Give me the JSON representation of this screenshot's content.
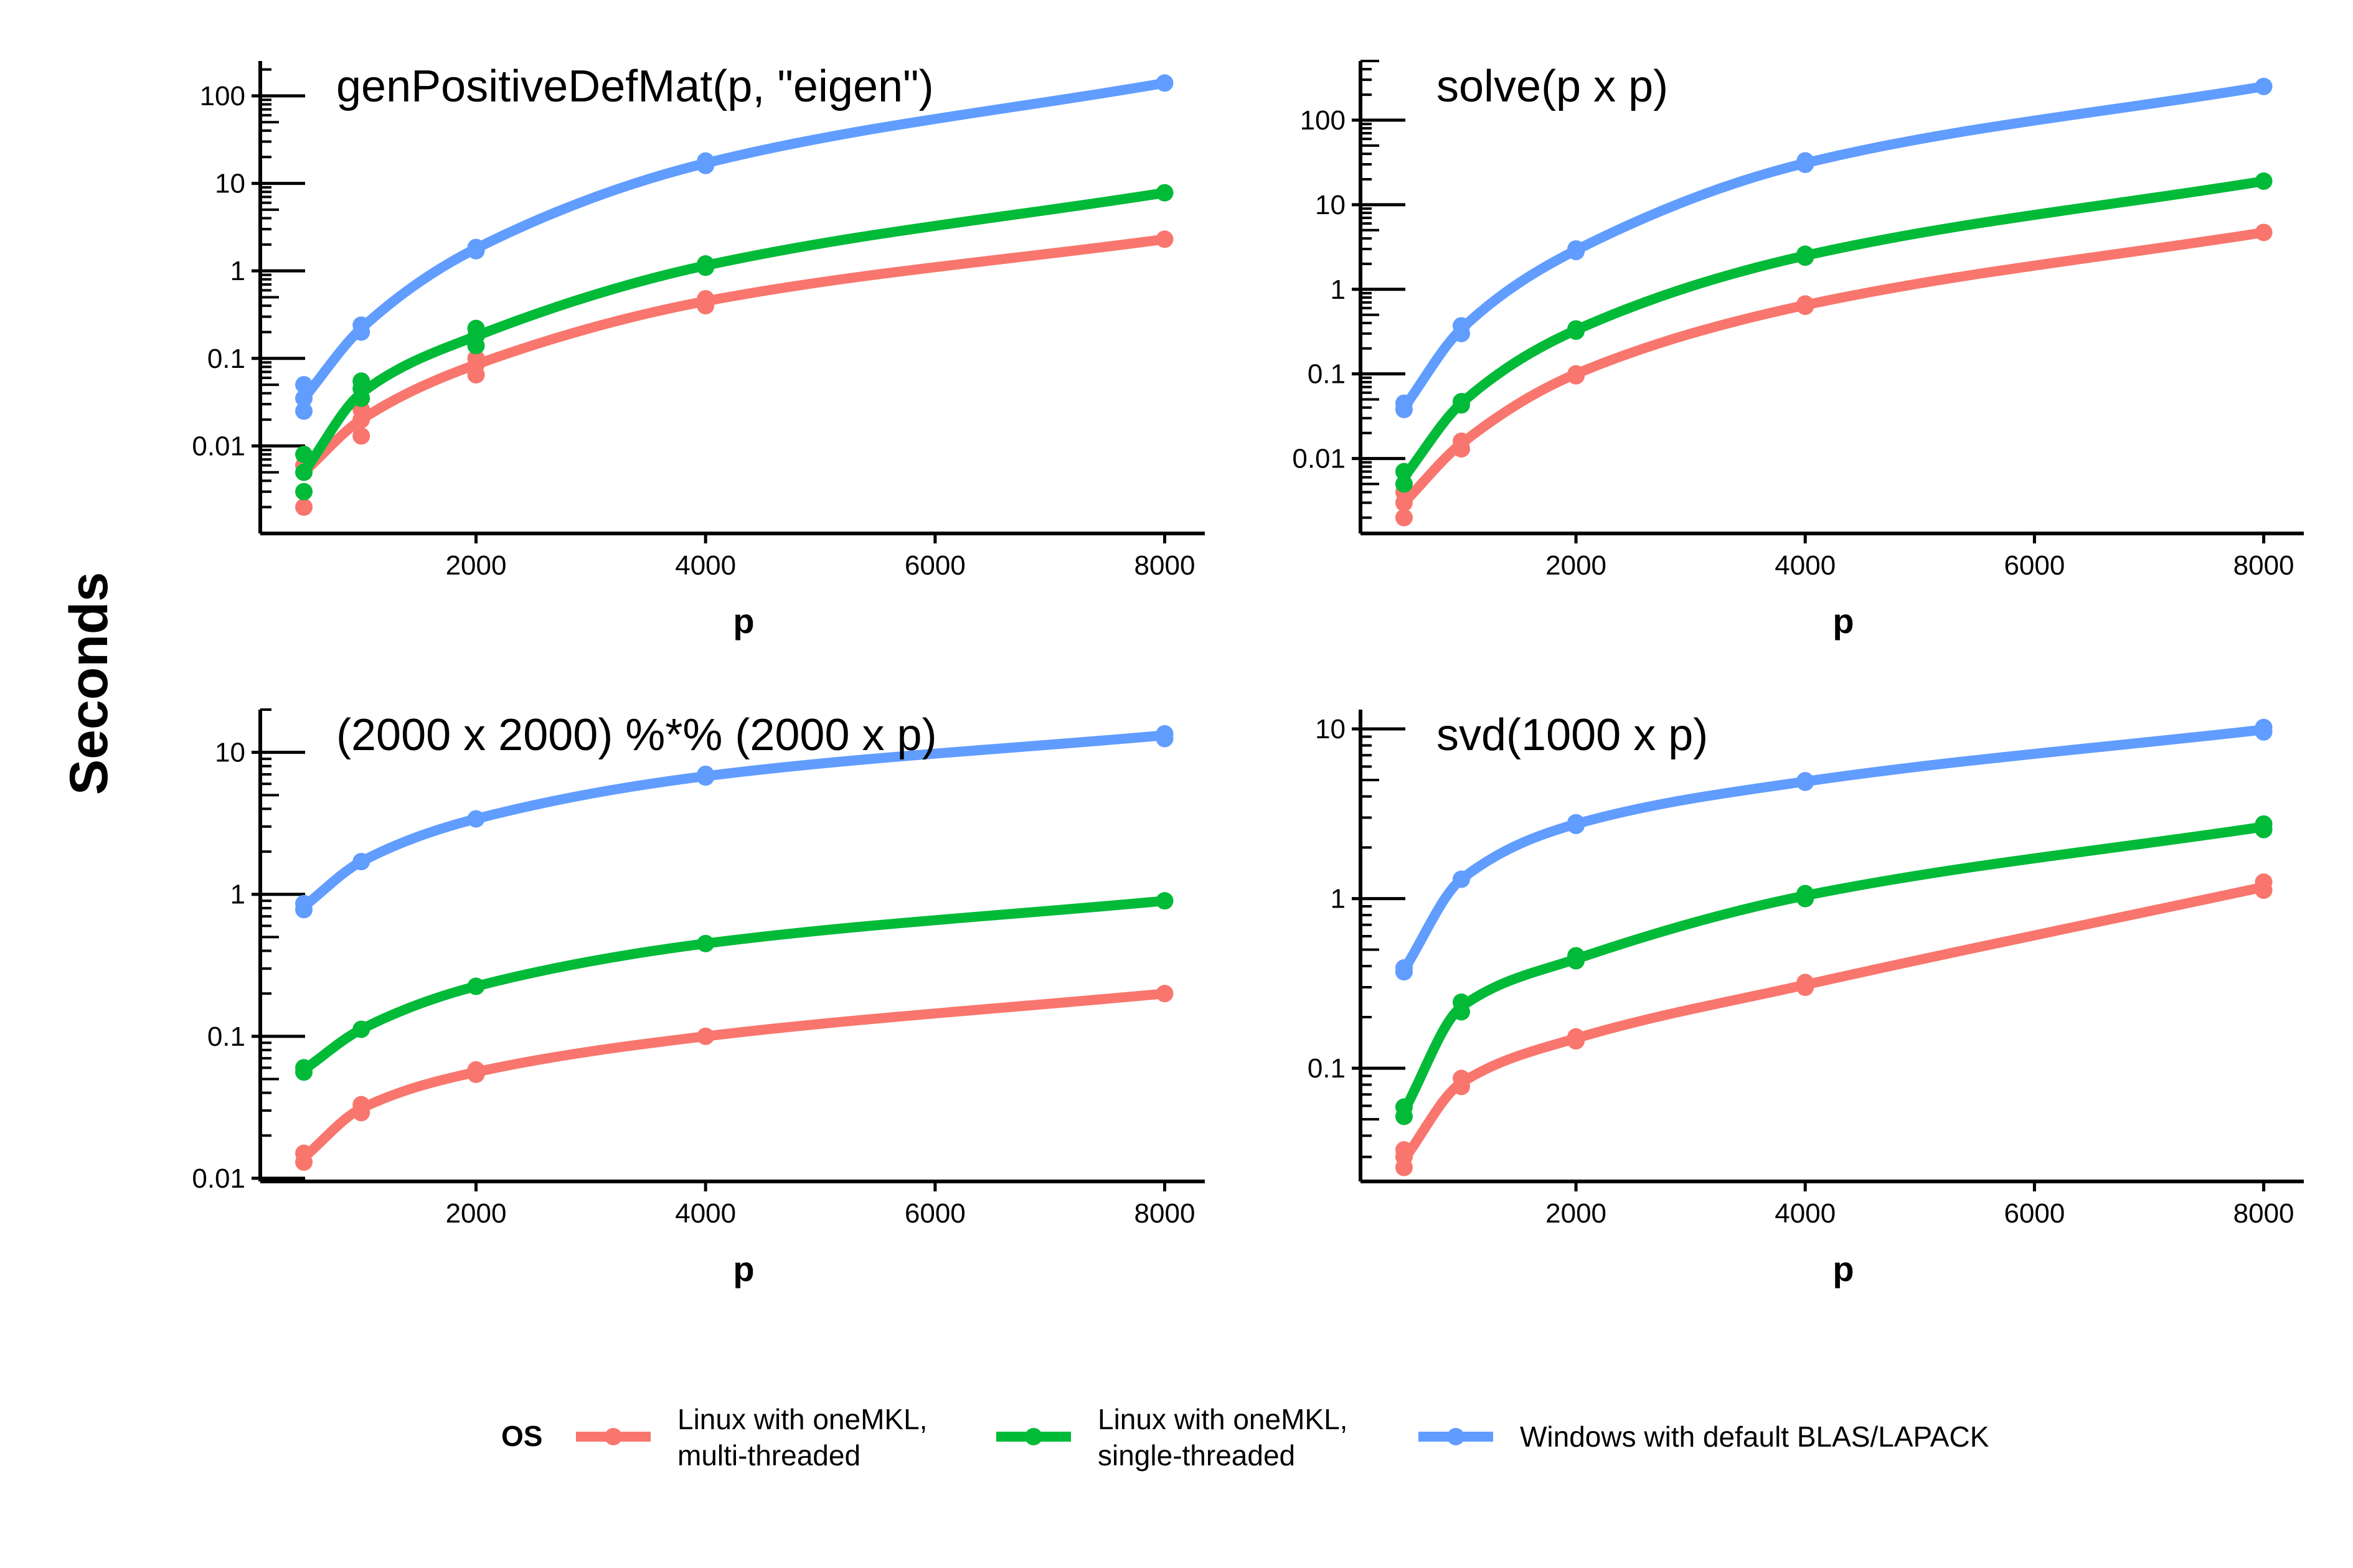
{
  "y_axis_title": "Seconds",
  "legend": {
    "title": "OS",
    "entries": [
      {
        "lines": [
          "Linux with oneMKL,",
          "multi-threaded"
        ],
        "color": "#F8766D"
      },
      {
        "lines": [
          "Linux with oneMKL,",
          "single-threaded"
        ],
        "color": "#00BA38"
      },
      {
        "lines": [
          "Windows with default BLAS/LAPACK"
        ],
        "color": "#619CFF"
      }
    ]
  },
  "chart_data": [
    {
      "type": "line",
      "title": "genPositiveDefMat(p, \"eigen\")",
      "xlabel": "p",
      "ylabel": "Seconds",
      "yscale": "log10",
      "xlim": [
        120,
        8350
      ],
      "ylim": [
        0.001,
        250
      ],
      "x_ticks": [
        2000,
        4000,
        6000,
        8000
      ],
      "y_ticks": [
        0.01,
        0.1,
        1,
        10,
        100
      ],
      "y_tick_labels": [
        "0.01",
        "0.1",
        "1",
        "10",
        "100"
      ],
      "x": [
        500,
        1000,
        2000,
        4000,
        8000
      ],
      "series": [
        {
          "name": "Linux with oneMKL, multi-threaded",
          "color": "#F8766D",
          "values": [
            0.005,
            0.02,
            0.085,
            0.45,
            2.3
          ],
          "points": [
            [
              500,
              0.002
            ],
            [
              500,
              0.006
            ],
            [
              1000,
              0.013
            ],
            [
              1000,
              0.02
            ],
            [
              1000,
              0.026
            ],
            [
              2000,
              0.065
            ],
            [
              2000,
              0.085
            ],
            [
              2000,
              0.1
            ],
            [
              4000,
              0.4
            ],
            [
              4000,
              0.48
            ],
            [
              8000,
              2.3
            ]
          ]
        },
        {
          "name": "Linux with oneMKL, single-threaded",
          "color": "#00BA38",
          "values": [
            0.005,
            0.04,
            0.18,
            1.15,
            7.8
          ],
          "points": [
            [
              500,
              0.003
            ],
            [
              500,
              0.005
            ],
            [
              500,
              0.008
            ],
            [
              1000,
              0.035
            ],
            [
              1000,
              0.045
            ],
            [
              1000,
              0.055
            ],
            [
              2000,
              0.14
            ],
            [
              2000,
              0.18
            ],
            [
              2000,
              0.22
            ],
            [
              4000,
              1.1
            ],
            [
              4000,
              1.2
            ],
            [
              8000,
              7.8
            ]
          ]
        },
        {
          "name": "Windows with default BLAS/LAPACK",
          "color": "#619CFF",
          "values": [
            0.035,
            0.22,
            1.8,
            17,
            140
          ],
          "points": [
            [
              500,
              0.025
            ],
            [
              500,
              0.035
            ],
            [
              500,
              0.05
            ],
            [
              1000,
              0.2
            ],
            [
              1000,
              0.24
            ],
            [
              2000,
              1.7
            ],
            [
              2000,
              1.85
            ],
            [
              4000,
              16
            ],
            [
              4000,
              18
            ],
            [
              8000,
              140
            ]
          ]
        }
      ]
    },
    {
      "type": "line",
      "title": "solve(p x p)",
      "xlabel": "p",
      "ylabel": "Seconds",
      "yscale": "log10",
      "xlim": [
        120,
        8350
      ],
      "ylim": [
        0.0013,
        500
      ],
      "x_ticks": [
        2000,
        4000,
        6000,
        8000
      ],
      "y_ticks": [
        0.01,
        0.1,
        1,
        10,
        100
      ],
      "y_tick_labels": [
        "0.01",
        "0.1",
        "1",
        "10",
        "100"
      ],
      "x": [
        500,
        1000,
        2000,
        4000,
        8000
      ],
      "series": [
        {
          "name": "Linux with oneMKL, multi-threaded",
          "color": "#F8766D",
          "values": [
            0.003,
            0.015,
            0.1,
            0.65,
            4.7
          ],
          "points": [
            [
              500,
              0.002
            ],
            [
              500,
              0.003
            ],
            [
              500,
              0.004
            ],
            [
              1000,
              0.013
            ],
            [
              1000,
              0.016
            ],
            [
              2000,
              0.095
            ],
            [
              2000,
              0.1
            ],
            [
              4000,
              0.63
            ],
            [
              4000,
              0.67
            ],
            [
              8000,
              4.7
            ]
          ]
        },
        {
          "name": "Linux with oneMKL, single-threaded",
          "color": "#00BA38",
          "values": [
            0.006,
            0.045,
            0.33,
            2.5,
            19
          ],
          "points": [
            [
              500,
              0.005
            ],
            [
              500,
              0.007
            ],
            [
              1000,
              0.043
            ],
            [
              1000,
              0.047
            ],
            [
              2000,
              0.32
            ],
            [
              2000,
              0.34
            ],
            [
              4000,
              2.4
            ],
            [
              4000,
              2.6
            ],
            [
              8000,
              19
            ]
          ]
        },
        {
          "name": "Windows with default BLAS/LAPACK",
          "color": "#619CFF",
          "values": [
            0.04,
            0.34,
            2.9,
            31,
            250
          ],
          "points": [
            [
              500,
              0.038
            ],
            [
              500,
              0.045
            ],
            [
              1000,
              0.3
            ],
            [
              1000,
              0.37
            ],
            [
              2000,
              2.8
            ],
            [
              2000,
              3.0
            ],
            [
              4000,
              30
            ],
            [
              4000,
              33
            ],
            [
              8000,
              250
            ]
          ]
        }
      ]
    },
    {
      "type": "line",
      "title": "(2000 x 2000) %*% (2000 x p)",
      "xlabel": "p",
      "ylabel": "Seconds",
      "yscale": "log10",
      "xlim": [
        120,
        8350
      ],
      "ylim": [
        0.0095,
        20
      ],
      "x_ticks": [
        2000,
        4000,
        6000,
        8000
      ],
      "y_ticks": [
        0.01,
        0.1,
        1,
        10
      ],
      "y_tick_labels": [
        "0.01",
        "0.1",
        "1",
        "10"
      ],
      "x": [
        500,
        1000,
        2000,
        4000,
        8000
      ],
      "series": [
        {
          "name": "Linux with oneMKL, multi-threaded",
          "color": "#F8766D",
          "values": [
            0.014,
            0.031,
            0.056,
            0.1,
            0.2
          ],
          "points": [
            [
              500,
              0.013
            ],
            [
              500,
              0.015
            ],
            [
              1000,
              0.029
            ],
            [
              1000,
              0.033
            ],
            [
              2000,
              0.054
            ],
            [
              2000,
              0.058
            ],
            [
              4000,
              0.1
            ],
            [
              8000,
              0.2
            ]
          ]
        },
        {
          "name": "Linux with oneMKL, single-threaded",
          "color": "#00BA38",
          "values": [
            0.058,
            0.112,
            0.225,
            0.45,
            0.9
          ],
          "points": [
            [
              500,
              0.056
            ],
            [
              500,
              0.06
            ],
            [
              1000,
              0.112
            ],
            [
              2000,
              0.225
            ],
            [
              4000,
              0.45
            ],
            [
              8000,
              0.9
            ]
          ]
        },
        {
          "name": "Windows with default BLAS/LAPACK",
          "color": "#619CFF",
          "values": [
            0.82,
            1.7,
            3.4,
            6.8,
            13.2
          ],
          "points": [
            [
              500,
              0.78
            ],
            [
              500,
              0.86
            ],
            [
              1000,
              1.7
            ],
            [
              2000,
              3.4
            ],
            [
              4000,
              6.7
            ],
            [
              4000,
              7.0
            ],
            [
              8000,
              12.5
            ],
            [
              8000,
              13.5
            ]
          ]
        }
      ]
    },
    {
      "type": "line",
      "title": "svd(1000 x p)",
      "xlabel": "p",
      "ylabel": "Seconds",
      "yscale": "log10",
      "xlim": [
        120,
        8350
      ],
      "ylim": [
        0.0215,
        13
      ],
      "x_ticks": [
        2000,
        4000,
        6000,
        8000
      ],
      "y_ticks": [
        0.1,
        1,
        10
      ],
      "y_tick_labels": [
        "0.1",
        "1",
        "10"
      ],
      "x": [
        500,
        1000,
        2000,
        4000,
        8000
      ],
      "series": [
        {
          "name": "Linux with oneMKL, multi-threaded",
          "color": "#F8766D",
          "values": [
            0.029,
            0.082,
            0.15,
            0.31,
            1.17
          ],
          "points": [
            [
              500,
              0.026
            ],
            [
              500,
              0.03
            ],
            [
              500,
              0.033
            ],
            [
              1000,
              0.078
            ],
            [
              1000,
              0.087
            ],
            [
              2000,
              0.145
            ],
            [
              2000,
              0.153
            ],
            [
              4000,
              0.3
            ],
            [
              4000,
              0.32
            ],
            [
              8000,
              1.12
            ],
            [
              8000,
              1.25
            ]
          ]
        },
        {
          "name": "Linux with oneMKL, single-threaded",
          "color": "#00BA38",
          "values": [
            0.056,
            0.23,
            0.44,
            1.04,
            2.65
          ],
          "points": [
            [
              500,
              0.052
            ],
            [
              500,
              0.059
            ],
            [
              1000,
              0.215
            ],
            [
              1000,
              0.245
            ],
            [
              2000,
              0.43
            ],
            [
              2000,
              0.46
            ],
            [
              4000,
              1.0
            ],
            [
              4000,
              1.07
            ],
            [
              8000,
              2.55
            ],
            [
              8000,
              2.75
            ]
          ]
        },
        {
          "name": "Windows with default BLAS/LAPACK",
          "color": "#619CFF",
          "values": [
            0.38,
            1.3,
            2.75,
            4.9,
            9.9
          ],
          "points": [
            [
              500,
              0.37
            ],
            [
              500,
              0.39
            ],
            [
              1000,
              1.3
            ],
            [
              2000,
              2.7
            ],
            [
              2000,
              2.8
            ],
            [
              4000,
              4.85
            ],
            [
              4000,
              4.95
            ],
            [
              8000,
              9.6
            ],
            [
              8000,
              10.2
            ]
          ]
        }
      ]
    }
  ]
}
